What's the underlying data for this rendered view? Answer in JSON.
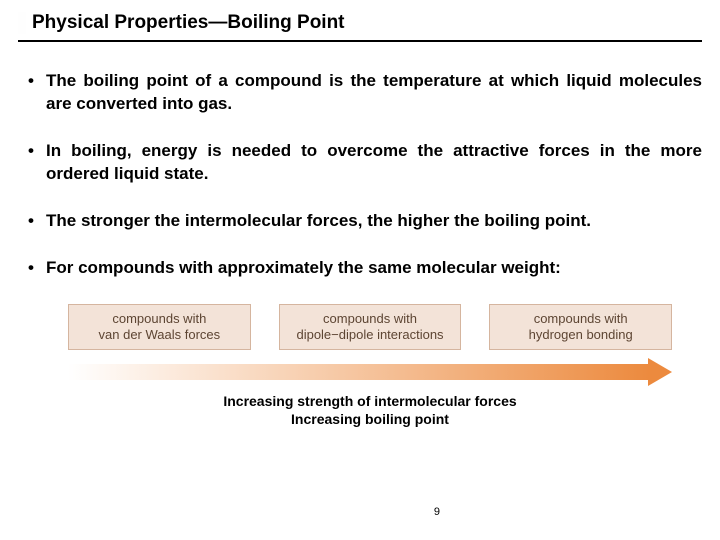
{
  "title": "Physical Properties—Boiling Point",
  "bullets": [
    "The boiling point of a compound is the temperature at which liquid molecules are converted into gas.",
    "In boiling, energy is needed to overcome the attractive forces in the more ordered liquid state.",
    "The stronger the intermolecular forces, the  higher the boiling point.",
    "For compounds with approximately the same molecular weight:"
  ],
  "diagram": {
    "boxes": [
      {
        "line1": "compounds with",
        "line2": "van der Waals forces"
      },
      {
        "line1": "compounds with",
        "line2": "dipole−dipole interactions"
      },
      {
        "line1": "compounds with",
        "line2": "hydrogen bonding"
      }
    ],
    "box_bg": "#f3e3d8",
    "box_border": "#d5b59f",
    "box_text_color": "#5d4533",
    "arrow_start_color": "#ffffff",
    "arrow_end_color": "#ec8a3e",
    "caption_line1": "Increasing strength of intermolecular forces",
    "caption_line2": "Increasing boiling point"
  },
  "page_number": "9",
  "colors": {
    "title_block": "#fefefe",
    "text": "#000000",
    "bg": "#ffffff"
  }
}
